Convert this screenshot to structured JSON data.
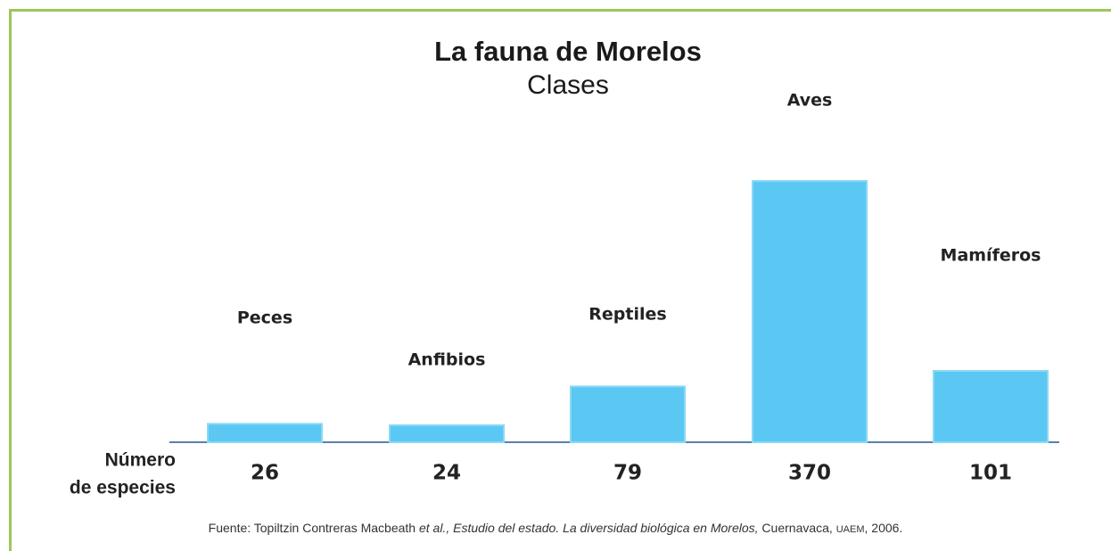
{
  "chart_data": {
    "type": "bar",
    "title": "La fauna de Morelos",
    "subtitle": "Clases",
    "categories": [
      "Peces",
      "Anfibios",
      "Reptiles",
      "Aves",
      "Mamíferos"
    ],
    "values": [
      26,
      24,
      79,
      370,
      101
    ],
    "color": "#5ac8f2",
    "value_label_title": [
      "Número",
      "de especies"
    ],
    "source": [
      "Fuente: Topiltzin Contreras Macbeath ",
      "et al.,",
      " Estudio del estado. La diversidad biológica en Morelos,",
      " Cuernavaca, ",
      "UAEM",
      ", 2006."
    ]
  }
}
